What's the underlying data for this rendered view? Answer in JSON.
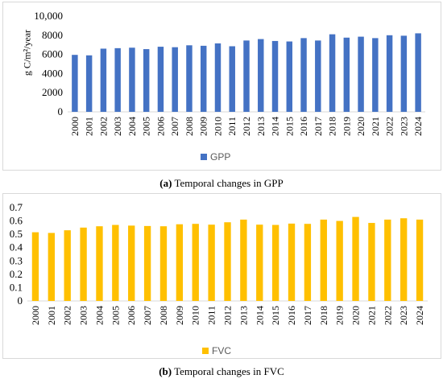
{
  "chart_data": [
    {
      "type": "bar",
      "id": "gpp",
      "categories": [
        "2000",
        "2001",
        "2002",
        "2003",
        "2004",
        "2005",
        "2006",
        "2007",
        "2008",
        "2009",
        "2010",
        "2011",
        "2012",
        "2013",
        "2014",
        "2015",
        "2016",
        "2017",
        "2018",
        "2019",
        "2020",
        "2021",
        "2022",
        "2023",
        "2024"
      ],
      "series": [
        {
          "name": "GPP",
          "color": "#4472C4",
          "values": [
            5950,
            5900,
            6600,
            6650,
            6700,
            6550,
            6800,
            6750,
            6950,
            6900,
            7150,
            6850,
            7450,
            7600,
            7400,
            7350,
            7700,
            7450,
            8100,
            7750,
            7850,
            7700,
            8000,
            7950,
            8200
          ]
        }
      ],
      "ylabel": "g C/m²/year",
      "ylim": [
        0,
        10000
      ],
      "yticks": [
        "0",
        "2000",
        "4000",
        "6000",
        "8000",
        "10,000"
      ],
      "grid": false,
      "legend_position": "bottom",
      "caption_letter": "(a)",
      "caption_text": " Temporal changes in GPP"
    },
    {
      "type": "bar",
      "id": "fvc",
      "categories": [
        "2000",
        "2001",
        "2002",
        "2003",
        "2004",
        "2005",
        "2006",
        "2007",
        "2008",
        "2009",
        "2010",
        "2011",
        "2012",
        "2013",
        "2014",
        "2015",
        "2016",
        "2017",
        "2018",
        "2019",
        "2020",
        "2021",
        "2022",
        "2023",
        "2024"
      ],
      "series": [
        {
          "name": "FVC",
          "color": "#FFC000",
          "values": [
            0.515,
            0.51,
            0.53,
            0.55,
            0.56,
            0.57,
            0.565,
            0.562,
            0.56,
            0.575,
            0.578,
            0.572,
            0.59,
            0.61,
            0.572,
            0.57,
            0.58,
            0.578,
            0.61,
            0.6,
            0.63,
            0.585,
            0.61,
            0.62,
            0.61
          ]
        }
      ],
      "ylabel": "",
      "ylim": [
        0,
        0.7
      ],
      "yticks": [
        "0",
        "0.1",
        "0.2",
        "0.3",
        "0.4",
        "0.5",
        "0.6",
        "0.7"
      ],
      "grid": false,
      "legend_position": "bottom",
      "caption_letter": "(b)",
      "caption_text": " Temporal changes in FVC"
    }
  ]
}
